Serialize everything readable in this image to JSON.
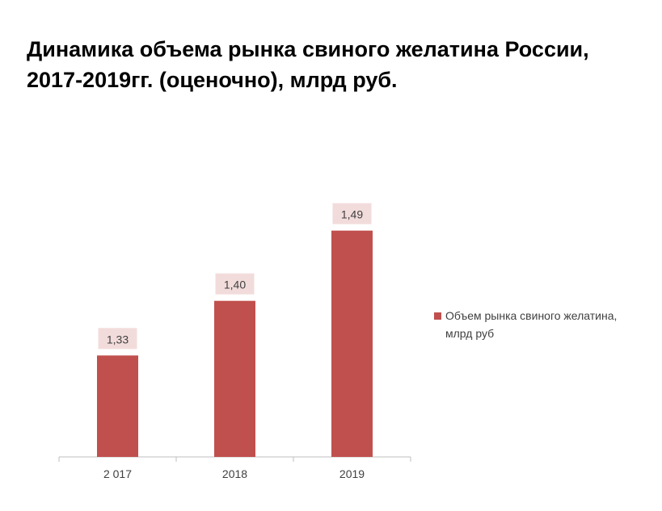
{
  "title": {
    "line1": "Динамика объема рынка свиного желатина России,",
    "line2": "2017-2019гг. (оценочно), млрд руб."
  },
  "chart_data": {
    "type": "bar",
    "title": "Динамика объема рынка свиного желатина России, 2017-2019гг. (оценочно), млрд руб.",
    "categories": [
      "2 017",
      "2018",
      "2019"
    ],
    "series": [
      {
        "name": "Объем рынка свиного желатина, млрд руб",
        "values": [
          1.33,
          1.4,
          1.49
        ],
        "labels": [
          "1,33",
          "1,40",
          "1,49"
        ]
      }
    ],
    "xlabel": "",
    "ylabel": "",
    "ylim": [
      1.2,
      1.5
    ],
    "grid": false,
    "legend_position": "right",
    "colors": {
      "bar": "#C0504D",
      "label_bg": "#F2DCDB",
      "axis": "#BFBFBF",
      "text": "#404040"
    }
  }
}
